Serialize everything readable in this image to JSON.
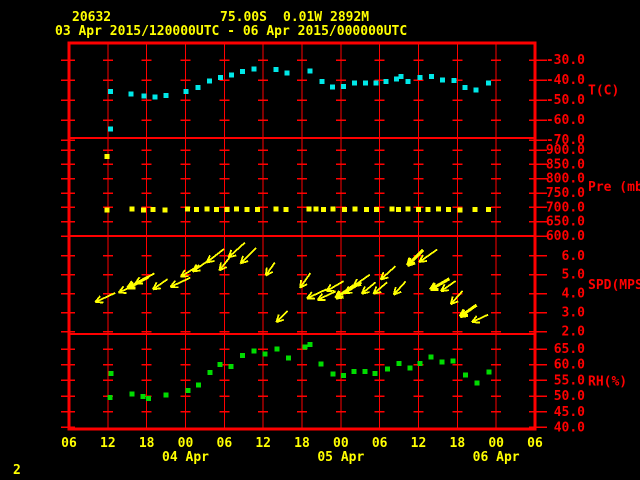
{
  "header": {
    "station_id": "20632",
    "latitude": "75.00S",
    "longitude": "0.01W",
    "elevation": "2892M",
    "time_range": "03 Apr 2015/120000UTC - 06 Apr 2015/000000UTC"
  },
  "page_number": "2",
  "colors": {
    "background": "#000000",
    "frame": "#ff0000",
    "grid": "#ff0000",
    "axis_label": "#ff0000",
    "time_label": "#ffff00",
    "header_text": "#ffff00",
    "temperature": "#00e8e8",
    "pressure": "#ffff00",
    "wind": "#ffff00",
    "humidity": "#00dc00"
  },
  "x_axis": {
    "hours_span": 72,
    "tick_interval_hours": 6,
    "tick_labels": [
      "06",
      "12",
      "18",
      "00",
      "06",
      "12",
      "18",
      "00",
      "06",
      "12",
      "18",
      "00",
      "06"
    ],
    "date_labels": [
      {
        "text": "04 Apr",
        "hour": 18
      },
      {
        "text": "05 Apr",
        "hour": 42
      },
      {
        "text": "06 Apr",
        "hour": 66
      }
    ]
  },
  "chart_data": [
    {
      "type": "scatter",
      "panel": "temperature",
      "label": "T(C)",
      "units": "C",
      "ylim": [
        -69.0,
        -21.5
      ],
      "yticks": [
        -30,
        -40,
        -50,
        -60,
        -70
      ],
      "points": [
        [
          6.4,
          -45.7
        ],
        [
          6.4,
          -64.5
        ],
        [
          9.6,
          -46.9
        ],
        [
          11.6,
          -47.9
        ],
        [
          13.3,
          -48.4
        ],
        [
          15.0,
          -47.7
        ],
        [
          18.1,
          -45.7
        ],
        [
          19.9,
          -43.7
        ],
        [
          21.7,
          -40.4
        ],
        [
          23.4,
          -38.7
        ],
        [
          25.1,
          -37.4
        ],
        [
          26.8,
          -35.7
        ],
        [
          28.6,
          -34.4
        ],
        [
          32.0,
          -34.7
        ],
        [
          33.7,
          -36.5
        ],
        [
          37.2,
          -35.4
        ],
        [
          39.1,
          -40.7
        ],
        [
          40.7,
          -43.5
        ],
        [
          42.4,
          -43.2
        ],
        [
          44.1,
          -41.5
        ],
        [
          45.8,
          -41.5
        ],
        [
          47.4,
          -41.5
        ],
        [
          49.0,
          -40.7
        ],
        [
          50.6,
          -39.5
        ],
        [
          51.3,
          -38.3
        ],
        [
          52.4,
          -40.7
        ],
        [
          54.2,
          -38.7
        ],
        [
          56.0,
          -38.2
        ],
        [
          57.7,
          -39.9
        ],
        [
          59.5,
          -40.2
        ],
        [
          61.2,
          -43.7
        ],
        [
          62.9,
          -44.9
        ],
        [
          64.8,
          -41.5
        ]
      ]
    },
    {
      "type": "scatter",
      "panel": "pressure",
      "label": "Pre (mb)",
      "units": "mb",
      "ylim": [
        600,
        942
      ],
      "yticks": [
        900,
        850,
        800,
        750,
        700,
        650,
        600
      ],
      "points": [
        [
          5.9,
          877
        ],
        [
          5.9,
          691
        ],
        [
          9.7,
          694
        ],
        [
          11.5,
          691
        ],
        [
          13.0,
          693
        ],
        [
          14.8,
          691
        ],
        [
          18.3,
          694
        ],
        [
          19.7,
          692
        ],
        [
          21.3,
          694
        ],
        [
          22.8,
          693
        ],
        [
          24.4,
          692
        ],
        [
          25.9,
          694
        ],
        [
          27.5,
          693
        ],
        [
          29.1,
          692
        ],
        [
          32.0,
          694
        ],
        [
          33.5,
          693
        ],
        [
          37.1,
          695
        ],
        [
          38.2,
          694
        ],
        [
          39.3,
          693
        ],
        [
          40.8,
          694
        ],
        [
          42.6,
          692
        ],
        [
          44.2,
          694
        ],
        [
          46.0,
          693
        ],
        [
          47.5,
          692
        ],
        [
          49.9,
          694
        ],
        [
          50.9,
          693
        ],
        [
          52.4,
          694
        ],
        [
          54.0,
          692
        ],
        [
          55.5,
          693
        ],
        [
          57.1,
          694
        ],
        [
          58.6,
          692
        ],
        [
          60.4,
          691
        ],
        [
          62.7,
          692
        ],
        [
          64.8,
          693
        ]
      ]
    },
    {
      "type": "vector",
      "panel": "wind-speed",
      "label": "SPD(MPS)",
      "units": "m/s",
      "ylim": [
        1.88,
        7.04
      ],
      "yticks": [
        6,
        5,
        4,
        3,
        2
      ],
      "arrow_note": "h, speed, pointing-angle-deg, length-px, weight",
      "arrows": [
        [
          5.6,
          3.8,
          205,
          22,
          1
        ],
        [
          9.2,
          4.3,
          205,
          22,
          1
        ],
        [
          10.7,
          4.6,
          208,
          24,
          2
        ],
        [
          11.7,
          4.8,
          208,
          22,
          1
        ],
        [
          14.1,
          4.5,
          215,
          18,
          1
        ],
        [
          17.2,
          4.6,
          205,
          22,
          1
        ],
        [
          18.7,
          5.2,
          212,
          22,
          1
        ],
        [
          20.5,
          5.5,
          215,
          22,
          1
        ],
        [
          22.6,
          6.0,
          218,
          22,
          1
        ],
        [
          24.1,
          5.6,
          232,
          18,
          1
        ],
        [
          25.9,
          6.3,
          222,
          22,
          1
        ],
        [
          27.7,
          6.0,
          225,
          22,
          1
        ],
        [
          31.1,
          5.3,
          235,
          16,
          1
        ],
        [
          32.9,
          2.8,
          225,
          16,
          1
        ],
        [
          36.5,
          4.7,
          235,
          18,
          1
        ],
        [
          38.3,
          4.0,
          205,
          22,
          1
        ],
        [
          39.8,
          3.9,
          205,
          20,
          1
        ],
        [
          41.1,
          4.4,
          210,
          20,
          1
        ],
        [
          42.6,
          4.1,
          215,
          22,
          2
        ],
        [
          43.9,
          4.3,
          212,
          20,
          1
        ],
        [
          45.2,
          4.7,
          215,
          20,
          1
        ],
        [
          46.3,
          4.3,
          220,
          18,
          1
        ],
        [
          48.1,
          4.3,
          220,
          18,
          1
        ],
        [
          49.3,
          5.1,
          222,
          20,
          1
        ],
        [
          51.1,
          4.3,
          228,
          18,
          1
        ],
        [
          53.5,
          5.9,
          225,
          22,
          2
        ],
        [
          55.5,
          6.0,
          215,
          22,
          1
        ],
        [
          57.3,
          4.5,
          210,
          22,
          2
        ],
        [
          58.6,
          4.4,
          215,
          18,
          1
        ],
        [
          59.9,
          3.8,
          228,
          18,
          1
        ],
        [
          61.7,
          3.1,
          215,
          20,
          2
        ],
        [
          63.5,
          2.7,
          205,
          18,
          1
        ]
      ]
    },
    {
      "type": "scatter",
      "panel": "humidity",
      "label": "RH(%)",
      "units": "%",
      "ylim": [
        39.5,
        69.8
      ],
      "yticks": [
        65,
        60,
        55,
        50,
        45,
        40
      ],
      "points": [
        [
          6.5,
          57.2
        ],
        [
          6.3,
          49.5
        ],
        [
          9.7,
          50.7
        ],
        [
          11.4,
          49.9
        ],
        [
          12.3,
          49.2
        ],
        [
          15.0,
          50.3
        ],
        [
          18.4,
          51.8
        ],
        [
          20.0,
          53.6
        ],
        [
          21.8,
          57.6
        ],
        [
          23.3,
          60.0
        ],
        [
          25.0,
          59.5
        ],
        [
          26.8,
          62.9
        ],
        [
          28.6,
          64.3
        ],
        [
          30.3,
          63.5
        ],
        [
          32.1,
          65.0
        ],
        [
          33.9,
          62.1
        ],
        [
          36.5,
          65.6
        ],
        [
          37.2,
          66.4
        ],
        [
          38.9,
          60.3
        ],
        [
          40.8,
          57.0
        ],
        [
          42.4,
          56.6
        ],
        [
          44.0,
          57.9
        ],
        [
          45.7,
          57.9
        ],
        [
          47.3,
          57.2
        ],
        [
          49.2,
          58.7
        ],
        [
          51.0,
          60.4
        ],
        [
          52.7,
          58.9
        ],
        [
          54.2,
          60.4
        ],
        [
          55.9,
          62.5
        ],
        [
          57.6,
          60.8
        ],
        [
          59.3,
          61.2
        ],
        [
          61.3,
          56.8
        ],
        [
          63.0,
          54.1
        ],
        [
          64.9,
          57.7
        ]
      ]
    }
  ]
}
